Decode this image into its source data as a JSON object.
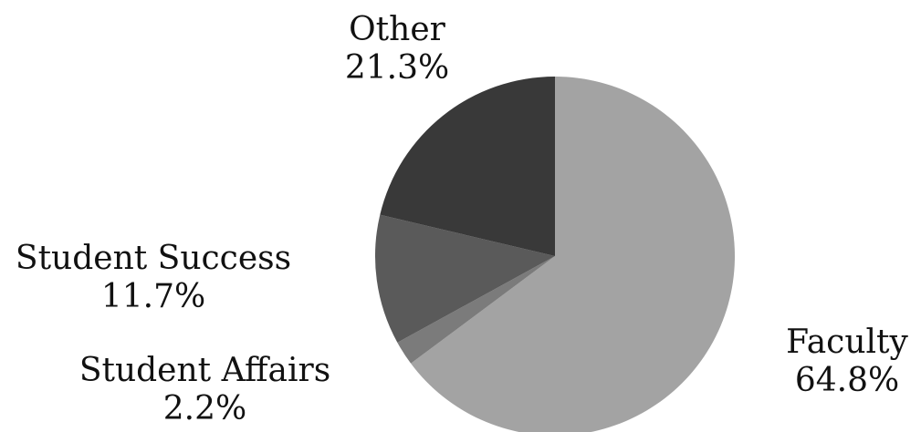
{
  "chart_data": {
    "type": "pie",
    "title": "",
    "slices": [
      {
        "label": "Faculty",
        "value": 64.8,
        "display": "64.8%",
        "color": "#a3a3a3"
      },
      {
        "label": "Student Affairs",
        "value": 2.2,
        "display": "2.2%",
        "color": "#7b7b7b"
      },
      {
        "label": "Student Success",
        "value": 11.7,
        "display": "11.7%",
        "color": "#5a5a5a"
      },
      {
        "label": "Other",
        "value": 21.3,
        "display": "21.3%",
        "color": "#393939"
      }
    ],
    "legend": "none"
  }
}
